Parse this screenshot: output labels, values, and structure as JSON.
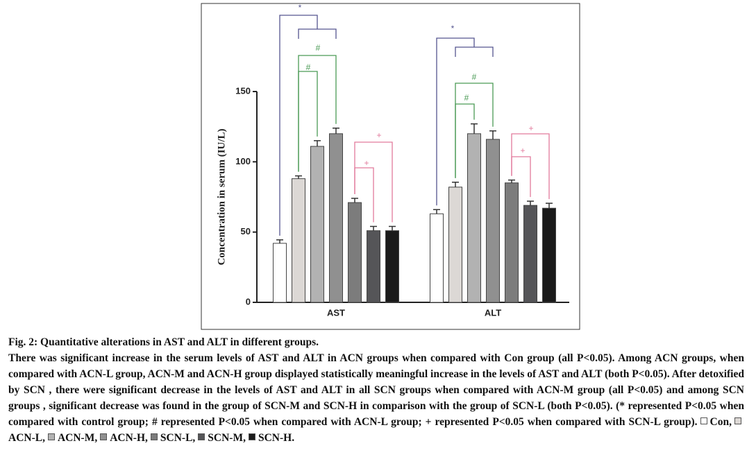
{
  "chart_data": {
    "type": "bar",
    "ylabel": "Concentration in serum (IU/L)",
    "categories": [
      "AST",
      "ALT"
    ],
    "series": [
      {
        "name": "Con",
        "color": "#ffffff",
        "values": [
          42,
          63
        ],
        "errors": [
          2.5,
          3
        ]
      },
      {
        "name": "ACN-L",
        "color": "#dcd8d5",
        "values": [
          88,
          82
        ],
        "errors": [
          2,
          3.5
        ]
      },
      {
        "name": "ACN-M",
        "color": "#b2b2b2",
        "values": [
          111,
          120
        ],
        "errors": [
          4,
          7
        ]
      },
      {
        "name": "ACN-H",
        "color": "#909090",
        "values": [
          120,
          116
        ],
        "errors": [
          4,
          6
        ]
      },
      {
        "name": "SCN-L",
        "color": "#7c7c7c",
        "values": [
          71,
          85
        ],
        "errors": [
          3,
          2
        ]
      },
      {
        "name": "SCN-M",
        "color": "#555558",
        "values": [
          51,
          69
        ],
        "errors": [
          3,
          3
        ]
      },
      {
        "name": "SCN-H",
        "color": "#1a1a1a",
        "values": [
          51,
          67
        ],
        "errors": [
          3,
          3.5
        ]
      }
    ],
    "ylim": [
      0,
      150
    ],
    "yticks": [
      0,
      50,
      100,
      150
    ],
    "annotations": [
      "*",
      "#",
      "#",
      "+",
      "+",
      "*",
      "#",
      "#",
      "+",
      "+"
    ]
  },
  "caption": {
    "title": "Fig. 2: Quantitative alterations in AST and ALT in different groups.",
    "body": "There was significant increase in the serum levels of AST and ALT in ACN groups when compared with Con group (all P<0.05). Among ACN groups, when compared with ACN-L group, ACN-M and ACN-H group displayed statistically meaningful increase in the levels of AST and ALT (both P<0.05). After detoxified by SCN , there were significant decrease in the levels of AST and ALT in all SCN groups when compared with ACN-M group (all P<0.05) and among SCN groups , significant decrease was found in the group of SCN-M and SCN-H in comparison with the group of SCN-L (both P<0.05). (* represented P<0.05 when compared with control group; # represented P<0.05 when compared with ACN-L group; + represented P<0.05 when compared with SCN-L group)."
  }
}
